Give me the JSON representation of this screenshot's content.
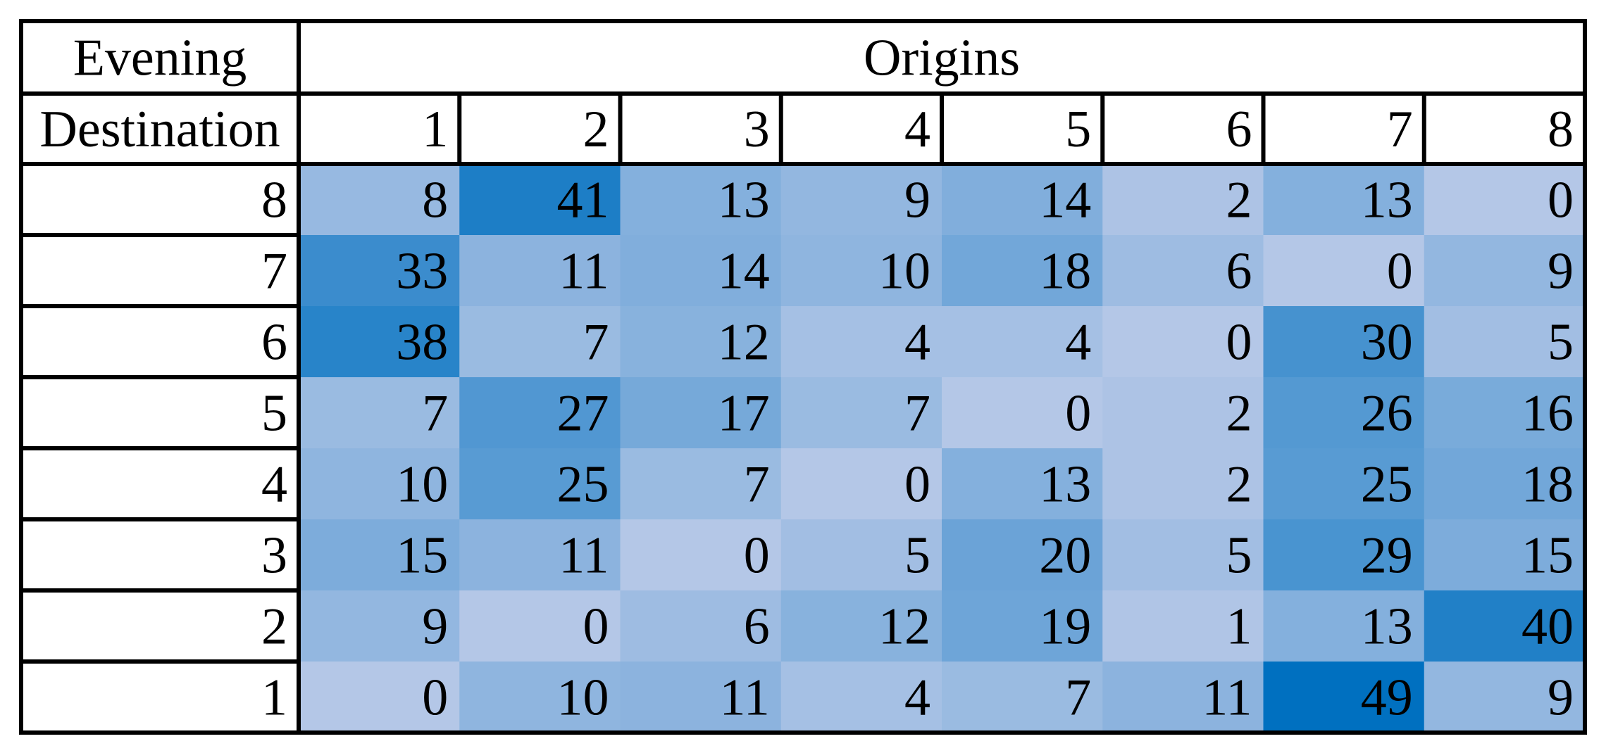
{
  "chart_data": {
    "type": "heatmap",
    "corner_label": "Evening",
    "row_header": "Destination",
    "column_header": "Origins",
    "columns": [
      "1",
      "2",
      "3",
      "4",
      "5",
      "6",
      "7",
      "8"
    ],
    "rows": [
      "8",
      "7",
      "6",
      "5",
      "4",
      "3",
      "2",
      "1"
    ],
    "values": [
      [
        8,
        41,
        13,
        9,
        14,
        2,
        13,
        0
      ],
      [
        33,
        11,
        14,
        10,
        18,
        6,
        0,
        9
      ],
      [
        38,
        7,
        12,
        4,
        4,
        0,
        30,
        5
      ],
      [
        7,
        27,
        17,
        7,
        0,
        2,
        26,
        16
      ],
      [
        10,
        25,
        7,
        0,
        13,
        2,
        25,
        18
      ],
      [
        15,
        11,
        0,
        5,
        20,
        5,
        29,
        15
      ],
      [
        9,
        0,
        6,
        12,
        19,
        1,
        13,
        40
      ],
      [
        0,
        10,
        11,
        4,
        7,
        11,
        49,
        9
      ]
    ],
    "color_scale": {
      "low": "#b4c7e7",
      "high": "#0070c0"
    }
  }
}
